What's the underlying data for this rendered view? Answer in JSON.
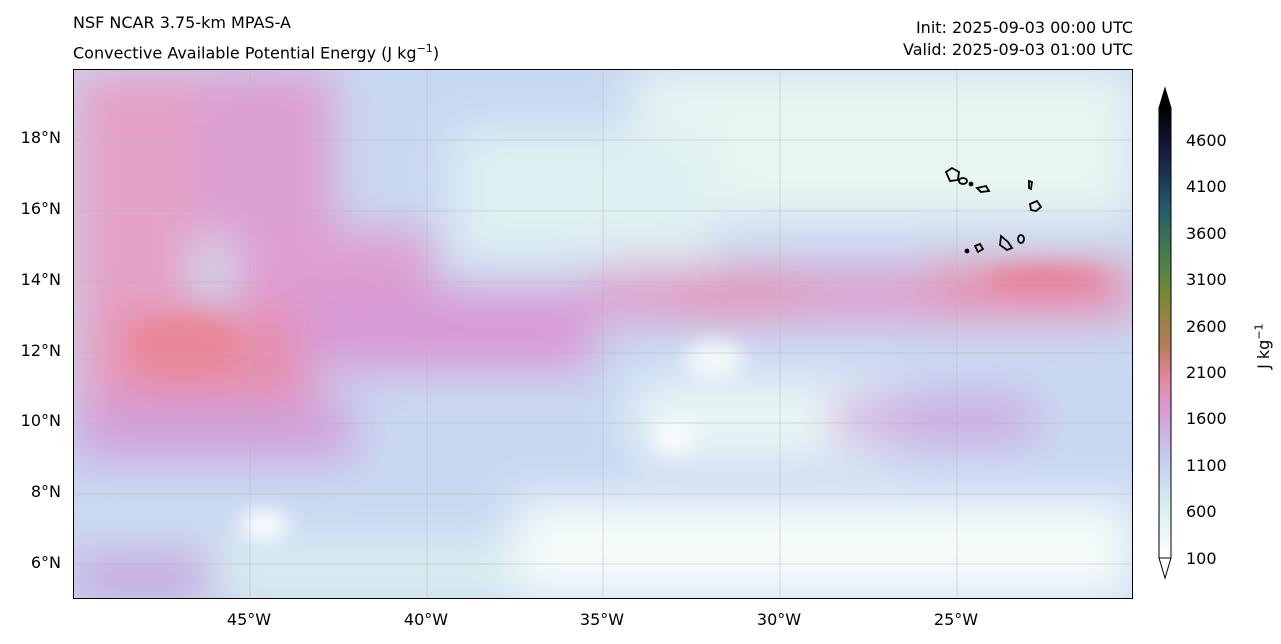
{
  "header": {
    "model": "NSF NCAR 3.75-km MPAS-A",
    "variable_prefix": "Convective Available Potential Energy (J kg",
    "variable_exp": "−1",
    "variable_suffix": ")",
    "init": "Init: 2025-09-03 00:00 UTC",
    "valid": "Valid: 2025-09-03 01:00 UTC"
  },
  "map": {
    "lon_range": [
      -50,
      -20
    ],
    "lat_range": [
      5,
      20
    ],
    "lat_ticks": [
      {
        "value": 18,
        "label": "18°N"
      },
      {
        "value": 16,
        "label": "16°N"
      },
      {
        "value": 14,
        "label": "14°N"
      },
      {
        "value": 12,
        "label": "12°N"
      },
      {
        "value": 10,
        "label": "10°N"
      },
      {
        "value": 8,
        "label": "8°N"
      },
      {
        "value": 6,
        "label": "6°N"
      }
    ],
    "lon_ticks": [
      {
        "value": -45,
        "label": "45°W"
      },
      {
        "value": -40,
        "label": "40°W"
      },
      {
        "value": -35,
        "label": "35°W"
      },
      {
        "value": -30,
        "label": "30°W"
      },
      {
        "value": -25,
        "label": "25°W"
      }
    ],
    "features": [
      "cape-fill",
      "gridlines",
      "cape-verde-islands-outline"
    ]
  },
  "colorbar": {
    "label_prefix": "J kg",
    "label_exp": "−1",
    "ticks": [
      "4600",
      "4100",
      "3600",
      "3100",
      "2600",
      "2100",
      "1600",
      "1100",
      "600",
      "100"
    ],
    "colors": [
      "#ffffff",
      "#d6f0ef",
      "#c3cdf2",
      "#d89ad6",
      "#e3889e",
      "#b87a5a",
      "#7b8a34",
      "#3f7d4f",
      "#215a6b",
      "#1b1f49",
      "#000000"
    ]
  }
}
